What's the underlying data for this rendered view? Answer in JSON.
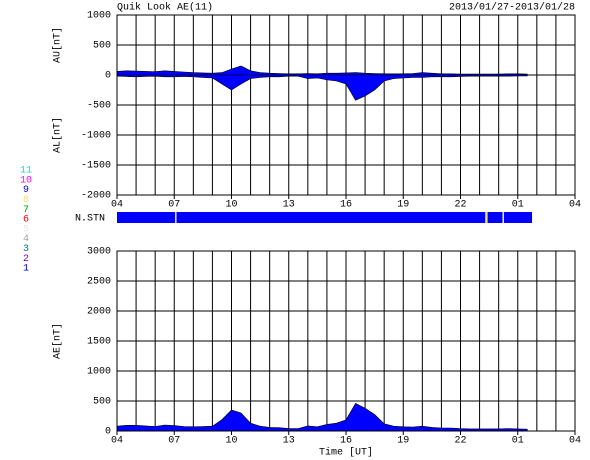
{
  "title": "Quik Look AE(11)",
  "date_range": "2013/01/27-2013/01/28",
  "chart_data": [
    {
      "type": "area",
      "ylabels": [
        "AU[nT]",
        "AL[nT]"
      ],
      "x": [
        4.0,
        4.5,
        5.0,
        5.5,
        6.0,
        6.5,
        7.0,
        7.5,
        8.0,
        8.5,
        9.0,
        9.5,
        10.0,
        10.5,
        11.0,
        11.5,
        12.0,
        12.5,
        13.0,
        13.5,
        14.0,
        14.5,
        15.0,
        15.5,
        16.0,
        16.5,
        17.0,
        17.5,
        18.0,
        18.5,
        19.0,
        19.5,
        20.0,
        20.5,
        21.0,
        21.5,
        22.0,
        22.5,
        23.0,
        23.5,
        24.0,
        24.5,
        25.0,
        25.5
      ],
      "series": [
        {
          "color": "#0000ff",
          "values": [
            60,
            70,
            65,
            60,
            55,
            70,
            60,
            50,
            40,
            35,
            30,
            40,
            100,
            150,
            70,
            40,
            30,
            25,
            20,
            20,
            25,
            20,
            30,
            30,
            35,
            40,
            30,
            25,
            20,
            20,
            20,
            25,
            40,
            30,
            20,
            20,
            15,
            15,
            15,
            15,
            15,
            20,
            20,
            15
          ]
        },
        {
          "color": "#0000ff",
          "values": [
            -20,
            -25,
            -30,
            -25,
            -20,
            -30,
            -30,
            -25,
            -30,
            -40,
            -50,
            -150,
            -250,
            -150,
            -60,
            -40,
            -30,
            -30,
            -20,
            -20,
            -60,
            -50,
            -80,
            -100,
            -150,
            -420,
            -350,
            -250,
            -100,
            -60,
            -50,
            -40,
            -40,
            -30,
            -30,
            -30,
            -25,
            -20,
            -20,
            -20,
            -20,
            -20,
            -15,
            -15
          ]
        }
      ],
      "xlim": [
        4,
        28
      ],
      "xticks": [
        {
          "value": 4,
          "label": "04"
        },
        {
          "value": 7,
          "label": "07"
        },
        10,
        13,
        16,
        19,
        22,
        {
          "value": 25,
          "label": "01"
        },
        {
          "value": 28,
          "label": "04"
        }
      ],
      "xgrid": [
        5,
        6,
        7,
        8,
        9,
        10,
        11,
        12,
        13,
        14,
        15,
        16,
        17,
        18,
        19,
        20,
        21,
        22,
        23,
        24,
        25,
        26,
        27
      ],
      "ylim": [
        -2000,
        1000
      ],
      "yticks": [
        -2000,
        -1500,
        -1000,
        -500,
        0,
        500,
        1000
      ]
    },
    {
      "type": "area",
      "ylabels": [
        "AE[nT]"
      ],
      "xlabel": "Time [UT]",
      "x": [
        4.0,
        4.5,
        5.0,
        5.5,
        6.0,
        6.5,
        7.0,
        7.5,
        8.0,
        8.5,
        9.0,
        9.5,
        10.0,
        10.5,
        11.0,
        11.5,
        12.0,
        12.5,
        13.0,
        13.5,
        14.0,
        14.5,
        15.0,
        15.5,
        16.0,
        16.5,
        17.0,
        17.5,
        18.0,
        18.5,
        19.0,
        19.5,
        20.0,
        20.5,
        21.0,
        21.5,
        22.0,
        22.5,
        23.0,
        23.5,
        24.0,
        24.5,
        25.0,
        25.5
      ],
      "series": [
        {
          "color": "#0000ff",
          "values": [
            80,
            95,
            95,
            85,
            75,
            100,
            90,
            75,
            70,
            75,
            80,
            190,
            350,
            300,
            130,
            80,
            60,
            55,
            40,
            40,
            85,
            70,
            110,
            130,
            185,
            460,
            380,
            275,
            120,
            80,
            70,
            65,
            80,
            60,
            50,
            50,
            40,
            35,
            35,
            35,
            35,
            40,
            35,
            30
          ]
        }
      ],
      "xlim": [
        4,
        28
      ],
      "xticks": [
        {
          "value": 4,
          "label": "04"
        },
        {
          "value": 7,
          "label": "07"
        },
        10,
        13,
        16,
        19,
        22,
        {
          "value": 25,
          "label": "01"
        },
        {
          "value": 28,
          "label": "04"
        }
      ],
      "xgrid": [
        5,
        6,
        7,
        8,
        9,
        10,
        11,
        12,
        13,
        14,
        15,
        16,
        17,
        18,
        19,
        20,
        21,
        22,
        23,
        24,
        25,
        26,
        27
      ],
      "ylim": [
        0,
        3000
      ],
      "yticks": [
        0,
        500,
        1000,
        1500,
        2000,
        2500,
        3000
      ]
    }
  ],
  "n_stn": {
    "label": "N.STN",
    "starts": [
      4,
      7.05,
      7.12,
      23.3,
      23.42,
      24.2,
      24.28
    ],
    "ends": [
      7.05,
      7.12,
      23.3,
      23.42,
      24.2,
      24.28,
      25.75
    ],
    "values": [
      9,
      5,
      9,
      8,
      9,
      5,
      9
    ]
  },
  "station_legend": {
    "levels": [
      11,
      10,
      9,
      8,
      7,
      6,
      5,
      4,
      3,
      2,
      1
    ],
    "colors": [
      "#00e0e0",
      "#ff00ff",
      "#0000ff",
      "#f0e060",
      "#00a000",
      "#ff0000",
      "#e8e8e8",
      "#a0a0a0",
      "#008080",
      "#8000c0",
      "#0000c0"
    ]
  }
}
